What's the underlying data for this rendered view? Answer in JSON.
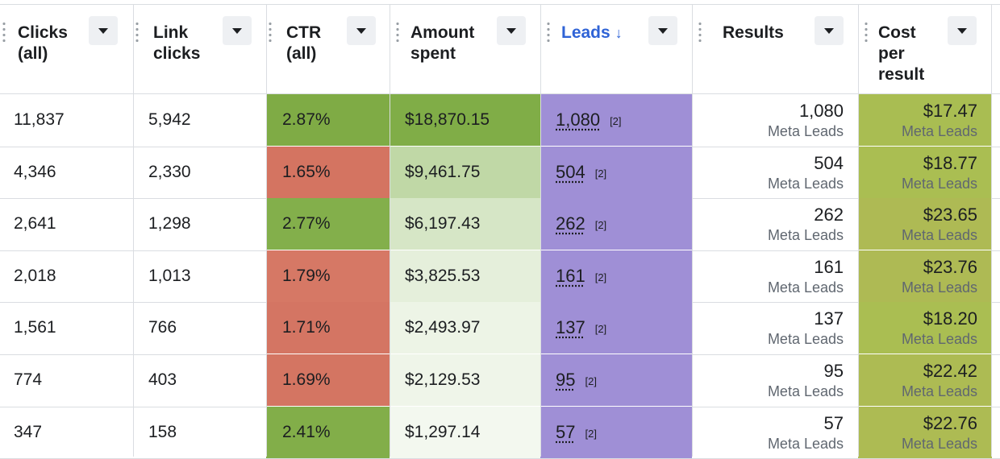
{
  "columns": [
    {
      "label_line1": "Clicks",
      "label_line2": "(all)",
      "label_line3": ""
    },
    {
      "label_line1": "Link",
      "label_line2": "clicks",
      "label_line3": ""
    },
    {
      "label_line1": "CTR",
      "label_line2": "(all)",
      "label_line3": ""
    },
    {
      "label_line1": "Amount",
      "label_line2": "spent",
      "label_line3": ""
    },
    {
      "label_line1": "Leads",
      "label_line2": "",
      "label_line3": "",
      "sort": "↓"
    },
    {
      "label_line1": "Results",
      "label_line2": "",
      "label_line3": ""
    },
    {
      "label_line1": "Cost",
      "label_line2": "per",
      "label_line3": "result"
    }
  ],
  "colors": {
    "ctr_green": "#7fab45",
    "ctr_red": "#d47461",
    "leads_purple": "#9f8fd6",
    "cost_green": "#a8bd52",
    "accent_blue": "#2f63d6"
  },
  "rows": [
    {
      "clicks": "11,837",
      "link_clicks": "5,942",
      "ctr": "2.87%",
      "ctr_color": "#7fab45",
      "spent": "$18,870.15",
      "spent_color": "#80ad47",
      "leads": "1,080",
      "leads_ref": "[2]",
      "results": "1,080",
      "results_type": "Meta Leads",
      "cost": "$17.47",
      "cost_type": "Meta Leads",
      "cost_color": "#a9bd52"
    },
    {
      "clicks": "4,346",
      "link_clicks": "2,330",
      "ctr": "1.65%",
      "ctr_color": "#d47461",
      "spent": "$9,461.75",
      "spent_color": "#c0d8a6",
      "leads": "504",
      "leads_ref": "[2]",
      "results": "504",
      "results_type": "Meta Leads",
      "cost": "$18.77",
      "cost_type": "Meta Leads",
      "cost_color": "#aabe52"
    },
    {
      "clicks": "2,641",
      "link_clicks": "1,298",
      "ctr": "2.77%",
      "ctr_color": "#83af4b",
      "spent": "$6,197.43",
      "spent_color": "#d6e6c6",
      "leads": "262",
      "leads_ref": "[2]",
      "results": "262",
      "results_type": "Meta Leads",
      "cost": "$23.65",
      "cost_type": "Meta Leads",
      "cost_color": "#aeba54"
    },
    {
      "clicks": "2,018",
      "link_clicks": "1,013",
      "ctr": "1.79%",
      "ctr_color": "#d67865",
      "spent": "$3,825.53",
      "spent_color": "#e5efdb",
      "leads": "161",
      "leads_ref": "[2]",
      "results": "161",
      "results_type": "Meta Leads",
      "cost": "$23.76",
      "cost_type": "Meta Leads",
      "cost_color": "#aeba54"
    },
    {
      "clicks": "1,561",
      "link_clicks": "766",
      "ctr": "1.71%",
      "ctr_color": "#d47563",
      "spent": "$2,493.97",
      "spent_color": "#edf4e6",
      "leads": "137",
      "leads_ref": "[2]",
      "results": "137",
      "results_type": "Meta Leads",
      "cost": "$18.20",
      "cost_type": "Meta Leads",
      "cost_color": "#aabe52"
    },
    {
      "clicks": "774",
      "link_clicks": "403",
      "ctr": "1.69%",
      "ctr_color": "#d47562",
      "spent": "$2,129.53",
      "spent_color": "#eff5e9",
      "leads": "95",
      "leads_ref": "[2]",
      "results": "95",
      "results_type": "Meta Leads",
      "cost": "$22.42",
      "cost_type": "Meta Leads",
      "cost_color": "#adbb53"
    },
    {
      "clicks": "347",
      "link_clicks": "158",
      "ctr": "2.41%",
      "ctr_color": "#82ae49",
      "spent": "$1,297.14",
      "spent_color": "#f3f8ef",
      "leads": "57",
      "leads_ref": "[2]",
      "results": "57",
      "results_type": "Meta Leads",
      "cost": "$22.76",
      "cost_type": "Meta Leads",
      "cost_color": "#adbb53"
    }
  ]
}
